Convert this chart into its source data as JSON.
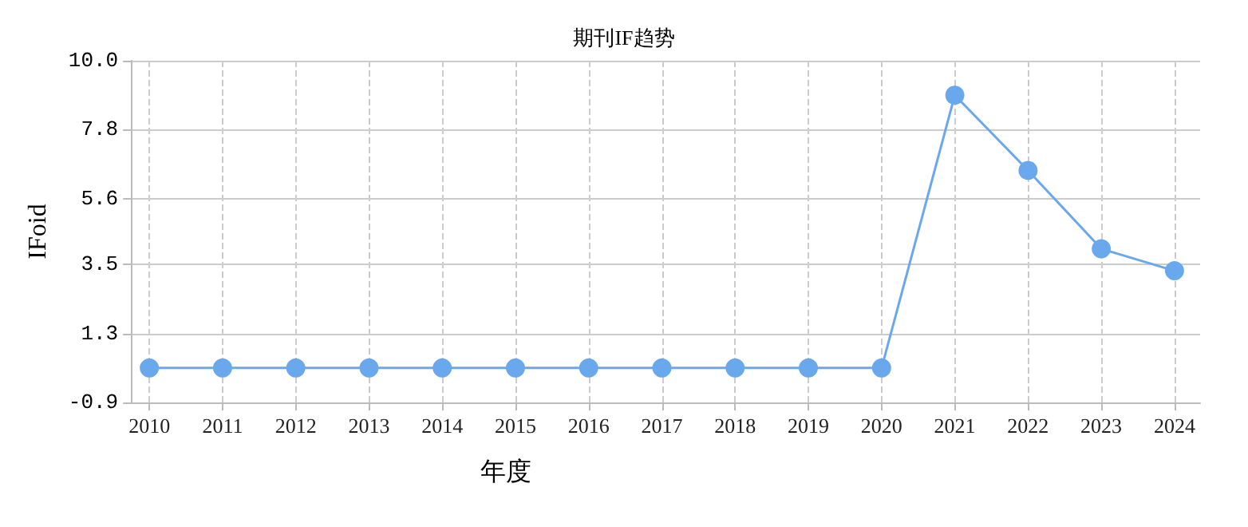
{
  "chart_data": {
    "type": "line",
    "title": "期刊IF趋势",
    "xlabel": "年度",
    "ylabel": "IFoid",
    "categories": [
      "2010",
      "2011",
      "2012",
      "2013",
      "2014",
      "2015",
      "2016",
      "2017",
      "2018",
      "2019",
      "2020",
      "2021",
      "2022",
      "2023",
      "2024"
    ],
    "series": [
      {
        "color": "#6aa8ee",
        "values": [
          0.2,
          0.2,
          0.2,
          0.2,
          0.2,
          0.2,
          0.2,
          0.2,
          0.2,
          0.2,
          0.2,
          8.9,
          6.5,
          4.0,
          3.3
        ]
      }
    ],
    "ylim": [
      -0.9,
      10.0
    ],
    "yticks": [
      {
        "value": -0.9,
        "label": "-0.9"
      },
      {
        "value": 1.3,
        "label": "1.3"
      },
      {
        "value": 3.5,
        "label": "3.5"
      },
      {
        "value": 5.6,
        "label": "5.6"
      },
      {
        "value": 7.8,
        "label": "7.8"
      },
      {
        "value": 10.0,
        "label": "10.0"
      }
    ],
    "grid": true,
    "marker": "circle",
    "line_style": "solid"
  }
}
